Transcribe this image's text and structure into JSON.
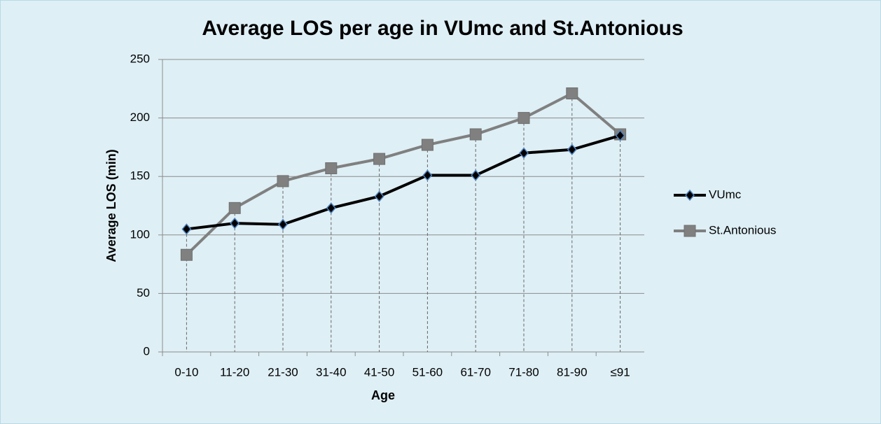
{
  "chart_data": {
    "type": "line",
    "title": "Average LOS per age in VUmc and St.Antonious",
    "x_label": "Age",
    "y_label": "Average LOS (min)",
    "categories": [
      "0-10",
      "11-20",
      "21-30",
      "31-40",
      "41-50",
      "51-60",
      "61-70",
      "71-80",
      "81-90",
      "≤91"
    ],
    "series": [
      {
        "name": "VUmc",
        "color": "#000000",
        "marker": "diamond",
        "values": [
          105,
          110,
          109,
          123,
          133,
          151,
          151,
          170,
          173,
          185
        ]
      },
      {
        "name": "St.Antonious",
        "color": "#808080",
        "marker": "square",
        "values": [
          83,
          123,
          146,
          157,
          165,
          177,
          186,
          200,
          221,
          186
        ]
      }
    ],
    "ylim": [
      0,
      250
    ],
    "yticks": [
      0,
      50,
      100,
      150,
      200,
      250
    ],
    "grid": true,
    "drop_lines": true,
    "legend": "right"
  }
}
